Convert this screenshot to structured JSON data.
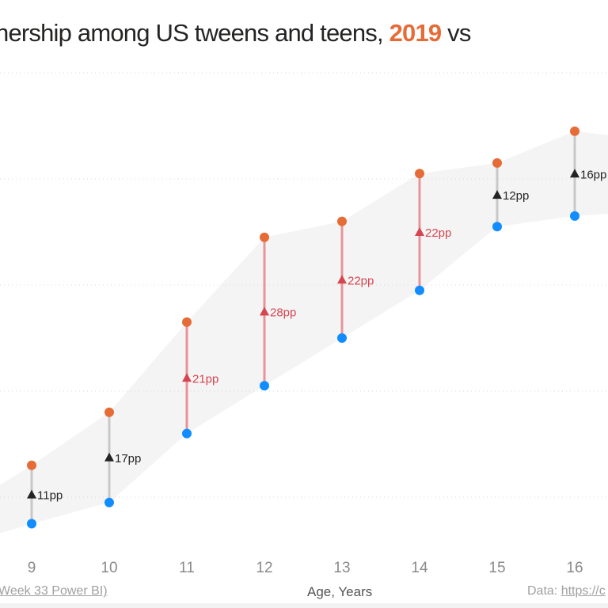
{
  "title": {
    "prefix": "nership among US tweens and teens, ",
    "highlight": "2019",
    "suffix": " vs"
  },
  "footer": {
    "left": "Week 33 Power BI)",
    "center": "Age, Years",
    "right_prefix": "Data: ",
    "right_link": "https://c"
  },
  "colors": {
    "y2019": "#E66C37",
    "y2015": "#118DFF",
    "big_gap": "#D64550",
    "small_gap": "#252423",
    "band": "#f4f4f4"
  },
  "chart_data": {
    "type": "dumbbell",
    "xlabel": "Age, Years",
    "categories": [
      9,
      10,
      11,
      12,
      13,
      14,
      15,
      16
    ],
    "series": [
      {
        "name": "2019",
        "values": [
          26,
          36,
          53,
          69,
          72,
          81,
          83,
          89
        ]
      },
      {
        "values": [
          15,
          19,
          32,
          41,
          50,
          59,
          71,
          73
        ]
      }
    ],
    "differences": [
      "11pp",
      "17pp",
      "21pp",
      "28pp",
      "22pp",
      "22pp",
      "12pp",
      "16pp"
    ],
    "ylim": [
      0,
      110
    ],
    "gridlines": [
      20,
      40,
      60,
      80,
      100
    ],
    "grid": true
  }
}
